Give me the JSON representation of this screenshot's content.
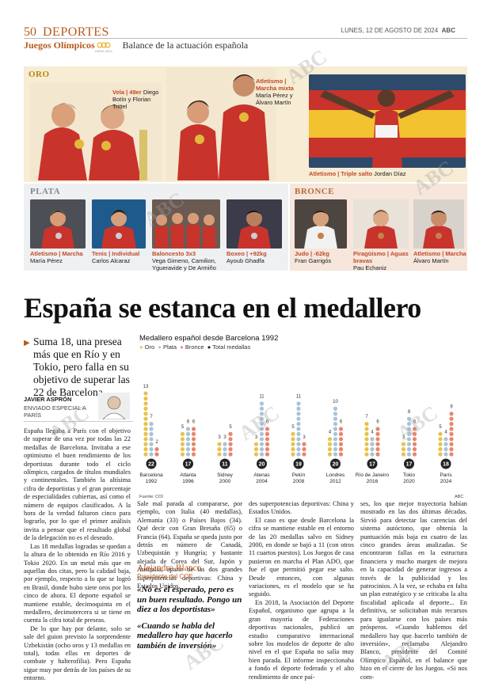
{
  "header": {
    "page_number": "50",
    "section": "DEPORTES",
    "date": "LUNES, 12 DE AGOSTO DE 2024",
    "paper": "ABC",
    "event": "Juegos Olímpicos",
    "event_logo_text": "PARIS 2024",
    "subtitle": "Balance de la actuación española"
  },
  "watermark": "ABC",
  "medals": {
    "gold": {
      "label": "ORO",
      "items": [
        {
          "sport": "Vela | 49er",
          "names": "Diego Botín y Florian Trittel"
        },
        {
          "sport": "Atletismo | Marcha mixta",
          "names": "María Pérez y Álvaro Martín"
        },
        {
          "sport": "Atletismo | Triple salto",
          "names": "Jordan Díaz"
        }
      ]
    },
    "silver": {
      "label": "PLATA",
      "items": [
        {
          "sport": "Atletismo | Marcha",
          "names": "María Pérez"
        },
        {
          "sport": "Tenis | Individual",
          "names": "Carlos Alcaraz"
        },
        {
          "sport": "Baloncesto 3x3",
          "names": "Vega Gimeno, Camilion, Ygueravide y De Armiño"
        },
        {
          "sport": "Boxeo | +92kg",
          "names": "Ayoub Ghadfa"
        }
      ]
    },
    "bronze": {
      "label": "BRONCE",
      "items": [
        {
          "sport": "Judo | -62kg",
          "names": "Fran Garrigós"
        },
        {
          "sport": "Piragüismo | Aguas bravas",
          "names": "Pau Echaniz"
        },
        {
          "sport": "Atletismo | Marcha",
          "names": "Álvaro Martín"
        }
      ]
    }
  },
  "article": {
    "headline": "España se estanca en el medallero",
    "deck": "Suma 18, una presea más que en Río y en Tokio, pero falla en su objetivo de superar las 22 de Barcelona",
    "author": "JAVIER ASPRÓN",
    "author_role": "ENVIADO ESPECIAL A PARÍS",
    "col1": [
      "España llegaba a París con el objetivo de superar de una vez por todas las 22 medallas de Barcelona. Invitaba a ese optimismo el buen rendimiento de los deportistas durante todo el ciclo olímpico, cargados de títulos mundiales y continentales. También la altísima cifra de deportistas y el gran porcentaje de especialidades cubiertas, así como el número de equipos clasificados. A la hora de la verdad faltaron cinco para lograrlo, por lo que el primer análisis invita a pensar que el resultado global de la delegación no es el deseado.",
      "Las 18 medallas logradas se quedan a la altura de lo obtenido en Río 2016 y Tokio 2020. En un metal más que en aquellas dos citas, pero la calidad baja, por ejemplo, respecto a lo que se logró en Brasil, donde hubo siete oros por los cinco de ahora. El deporte español se mantiene estable, decimoquinta en el medallero, decimotercera si se tiene en cuenta la cifra total de preseas.",
      "De lo que hay por delante, solo se sale del guion previsto la sorprendente Uzbekistán (ocho oros y 13 medallas en total), todas ellas en deportes de combate y halterofilia). Pero España sigue muy por detrás de los países de su entorno."
    ],
    "col2": [
      "Sale mal parada al compararse, por ejemplo, con Italia (40 medallas), Alemania (33) o Países Bajos (34). Qué decir con Gran Bretaña (65) o Francia (64). España se queda justo por detrás en número de Canadá, Uzbequistán y Hungría; y bastante alejada de Corea del Sur, Japón y Australia, aparte de las dos grandes superpotencias deportivas: China y Estados Unidos."
    ],
    "quote_name": "Alejandro Blanco",
    "quote_role": "Presidente del COE",
    "pull1": "«No es el esperado, pero es un buen resultado. Pongo un diez a los deportistas»",
    "pull2": "«Cuando se habla del medallero hay que hacerlo también de inversión»",
    "col3": [
      "des superpotencias deportivas: China y Estados Unidos.",
      "El caso es que desde Barcelona la cifra se mantiene estable en el entorno de las 20 medallas salvo en Sidney 2000, en donde se bajó a 11 (con otros 11 cuartos puestos). Los Juegos de casa pusieron en marcha el Plan ADO, que fue el que permitió pegar ese salto. Desde entonces, con algunas variaciones, es el modelo que se ha seguido.",
      "En 2018, la Asociación del Deporte Español, organismo que agrupa a la gran mayoría de Federaciones deportivas nacionales, publicó un estudio comparativo internacional sobre los modelos de deporte de alto nivel en el que España no salía muy bien parada. El informe inspeccionaba a fondo el deporte federado y el alto rendimiento de once paí-"
    ],
    "col4": [
      "ses, los que mejor trayectoria habían mostrado en las dos últimas décadas. Sirvió para detectar las carencias del sistema autóctono, que obtenía la puntuación más baja en cuatro de las cinco grandes áreas analizadas. Se encontraron fallas en la estructura financiera y mucho margen de mejora en la capacidad de generar ingresos a través de la publicidad y los patrocinios. A la vez, se echaba en falta un plan estratégico y se criticaba la alta fiscalidad aplicada al deporte... En definitiva, se solicitaban más recursos para igualarse con los países más prósperos. «Cuando hablemos del medallero hay que hacerlo también de inversión», reclamaba Alejandro Blanco, presidente del Comité Olímpico Español, en el balance que hizo en el cierre de los Juegos. «Si nos com-"
    ]
  },
  "chart_data": {
    "type": "bar",
    "title": "Medallero español desde Barcelona 1992",
    "legend": [
      "Oro",
      "Plata",
      "Bronce",
      "Total medallas"
    ],
    "colors": {
      "gold": "#e8c24a",
      "silver": "#a9c3d6",
      "bronze": "#e9856d",
      "total": "#222222"
    },
    "categories": [
      "Barcelona 1992",
      "Atlanta 1996",
      "Sidney 2000",
      "Atenas 2004",
      "Pekín 2008",
      "Londres 2012",
      "Río de Janeiro 2016",
      "Tokio 2020",
      "París 2024"
    ],
    "city": [
      "Barcelona",
      "Atlanta",
      "Sidney",
      "Atenas",
      "Pekín",
      "Londres",
      "Río de Janeiro",
      "Tokio",
      "París"
    ],
    "year": [
      "1992",
      "1996",
      "2000",
      "2004",
      "2008",
      "2012",
      "2016",
      "2020",
      "2024"
    ],
    "series": [
      {
        "name": "Oro",
        "values": [
          13,
          5,
          3,
          3,
          5,
          4,
          7,
          3,
          5
        ]
      },
      {
        "name": "Plata",
        "values": [
          7,
          6,
          3,
          11,
          11,
          10,
          4,
          8,
          4
        ]
      },
      {
        "name": "Bronce",
        "values": [
          2,
          6,
          5,
          6,
          3,
          6,
          6,
          6,
          9
        ]
      }
    ],
    "totals": [
      22,
      17,
      11,
      20,
      19,
      20,
      17,
      17,
      18
    ],
    "source": "Fuente: COI",
    "credit": "ABC"
  }
}
